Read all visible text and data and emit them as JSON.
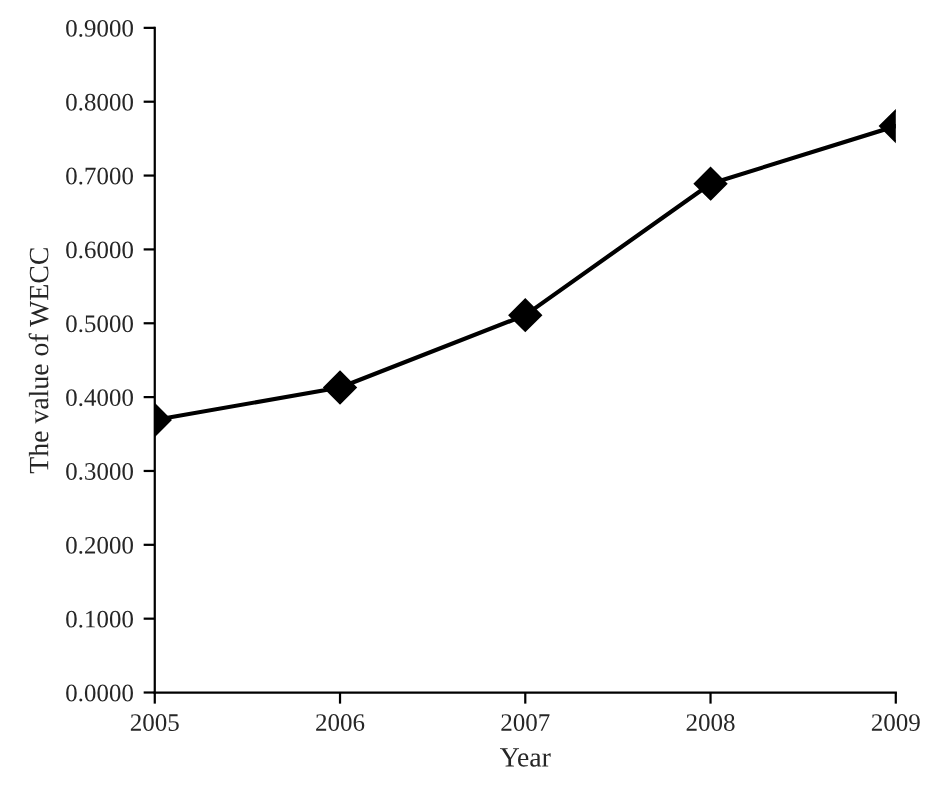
{
  "chart_data": {
    "type": "line",
    "xlabel": "Year",
    "ylabel": "The value of WECC",
    "x": [
      2005,
      2006,
      2007,
      2008,
      2009
    ],
    "series": [
      {
        "color": "#000000",
        "values": [
          0.369,
          0.413,
          0.511,
          0.689,
          0.767
        ]
      }
    ],
    "xlim": [
      2005,
      2009
    ],
    "xticks": [
      2005,
      2006,
      2007,
      2008,
      2009
    ],
    "ylim": [
      0,
      0.9
    ],
    "yticks": [
      {
        "value": 0,
        "label": "0.0000"
      },
      {
        "value": 0.1,
        "label": "0.1000"
      },
      {
        "value": 0.2,
        "label": "0.2000"
      },
      {
        "value": 0.3,
        "label": "0.3000"
      },
      {
        "value": 0.4,
        "label": "0.4000"
      },
      {
        "value": 0.5,
        "label": "0.5000"
      },
      {
        "value": 0.6,
        "label": "0.6000"
      },
      {
        "value": 0.7,
        "label": "0.7000"
      },
      {
        "value": 0.8,
        "label": "0.8000"
      },
      {
        "value": 0.9,
        "label": "0.9000"
      }
    ],
    "marker": "diamond",
    "line_style": "solid",
    "grid": false,
    "legend": false
  }
}
